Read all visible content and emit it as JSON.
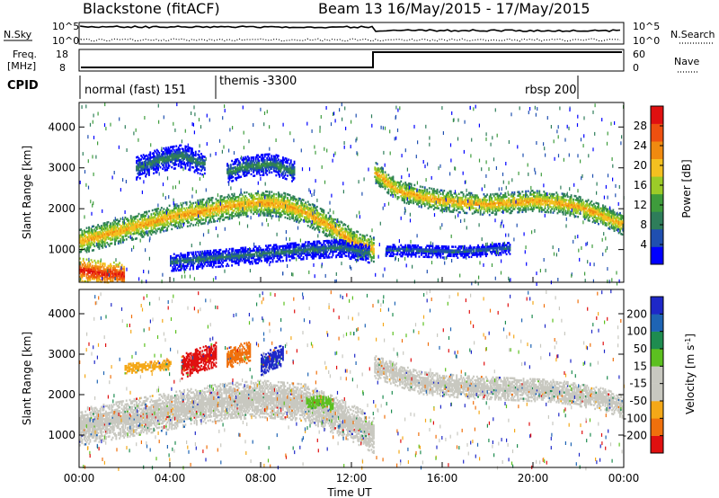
{
  "header": {
    "station": "Blackstone (fitACF)",
    "beam_date": "Beam 13 16/May/2015 - 17/May/2015"
  },
  "top_panels": {
    "nsky_label": "N.Sky",
    "nsearch_label": "N.Search",
    "nsky_ticks": [
      "10^5",
      "10^0"
    ],
    "nsky_right_ticks": [
      "10^5",
      "10^0"
    ],
    "freq_label_1": "Freq.",
    "freq_label_2": "[MHz]",
    "freq_ticks": [
      "18",
      "8"
    ],
    "nave_ticks": [
      "60",
      "0"
    ],
    "nave_label": "Nave",
    "cpid_label": "CPID"
  },
  "cpid_segments": [
    {
      "label": "normal (fast) 151",
      "start_h": 0.0,
      "end_h": 6.0
    },
    {
      "label": "themis -3300",
      "start_h": 6.0,
      "end_h": 22.0
    },
    {
      "label": "rbsp 200",
      "start_h": 22.0,
      "end_h": 24.0
    }
  ],
  "colors": {
    "power": [
      "#0000ff",
      "#1f4fb0",
      "#2e7d5a",
      "#3e9c3c",
      "#9ccb28",
      "#f4c020",
      "#f08a10",
      "#ee5010",
      "#e01010"
    ],
    "velocity": [
      "#e01010",
      "#f0700c",
      "#f4a818",
      "#c8c8c0",
      "#c8c8c0",
      "#5cc020",
      "#1e8c50",
      "#1e64b4",
      "#1e28c8"
    ]
  },
  "chart_data": [
    {
      "type": "heatmap",
      "title": "Power",
      "ylabel": "Slant Range [km]",
      "xlim": [
        0,
        24
      ],
      "ylim": [
        200,
        4600
      ],
      "yticks": [
        "1000",
        "2000",
        "3000",
        "4000"
      ],
      "colorbar_label": "Power [dB]",
      "colorbar_ticks": [
        "4",
        "8",
        "12",
        "16",
        "20",
        "24",
        "28"
      ],
      "colorbar_range": [
        0,
        32
      ],
      "bands": [
        {
          "t": [
            0,
            1,
            2,
            3,
            4,
            5,
            6,
            7,
            8,
            9,
            10,
            11,
            12,
            13
          ],
          "r": [
            1200,
            1350,
            1500,
            1650,
            1800,
            1900,
            2000,
            2100,
            2150,
            2100,
            1900,
            1600,
            1200,
            1000
          ],
          "width": 300,
          "level": 22
        },
        {
          "t": [
            13,
            14,
            15,
            16,
            17,
            18,
            19,
            20,
            21,
            22,
            23,
            24
          ],
          "r": [
            2900,
            2450,
            2300,
            2200,
            2150,
            2100,
            2150,
            2200,
            2150,
            2050,
            1850,
            1600
          ],
          "width": 250,
          "level": 22
        },
        {
          "t": [
            0,
            1,
            2
          ],
          "r": [
            500,
            420,
            380
          ],
          "width": 300,
          "level": 30
        },
        {
          "t": [
            2.5,
            3.5,
            4.5,
            5.5
          ],
          "r": [
            3000,
            3200,
            3300,
            3100
          ],
          "width": 280,
          "level": 10
        },
        {
          "t": [
            6.5,
            7.5,
            8.5,
            9.5
          ],
          "r": [
            2900,
            3050,
            3100,
            2900
          ],
          "width": 250,
          "level": 11
        },
        {
          "t": [
            4,
            6,
            8,
            10,
            11.5,
            12.8
          ],
          "r": [
            700,
            800,
            900,
            1000,
            1050,
            900
          ],
          "width": 220,
          "level": 9
        },
        {
          "t": [
            13.5,
            15,
            16.5,
            18,
            19
          ],
          "r": [
            1000,
            980,
            950,
            1000,
            1050
          ],
          "width": 150,
          "level": 8
        }
      ]
    },
    {
      "type": "heatmap",
      "title": "Velocity",
      "ylabel": "Slant Range [km]",
      "xlabel": "Time UT",
      "xlim": [
        0,
        24
      ],
      "ylim": [
        200,
        4600
      ],
      "xticks": [
        "00:00",
        "04:00",
        "08:00",
        "12:00",
        "16:00",
        "20:00",
        "00:00"
      ],
      "yticks": [
        "1000",
        "2000",
        "3000",
        "4000"
      ],
      "colorbar_label": "Velocity [m s^-1]",
      "colorbar_ticks": [
        "-200",
        "-100",
        "-50",
        "-15",
        "15",
        "50",
        "100",
        "200"
      ],
      "bands": [
        {
          "t": [
            0,
            2,
            4,
            6,
            8,
            10,
            12,
            13
          ],
          "r": [
            1200,
            1400,
            1600,
            1800,
            1900,
            1800,
            1300,
            1000
          ],
          "width": 450,
          "color_index": 3
        },
        {
          "t": [
            13,
            15,
            17,
            19,
            21,
            23,
            24
          ],
          "r": [
            2700,
            2300,
            2200,
            2150,
            2100,
            1900,
            1700
          ],
          "width": 280,
          "color_index": 3
        },
        {
          "t": [
            4.5,
            5.2,
            6.0
          ],
          "r": [
            2700,
            2850,
            3000
          ],
          "width": 300,
          "color_index": 0
        },
        {
          "t": [
            6.5,
            7.0,
            7.5
          ],
          "r": [
            2900,
            3000,
            3050
          ],
          "width": 250,
          "color_index": 1
        },
        {
          "t": [
            8.0,
            8.5,
            9.0
          ],
          "r": [
            2750,
            2900,
            3000
          ],
          "width": 260,
          "color_index": 8
        },
        {
          "t": [
            10.0,
            10.6,
            11.2
          ],
          "r": [
            1800,
            1850,
            1750
          ],
          "width": 150,
          "color_index": 5
        },
        {
          "t": [
            2.0,
            3.0,
            4.0
          ],
          "r": [
            2650,
            2700,
            2750
          ],
          "width": 120,
          "color_index": 2
        }
      ]
    }
  ]
}
